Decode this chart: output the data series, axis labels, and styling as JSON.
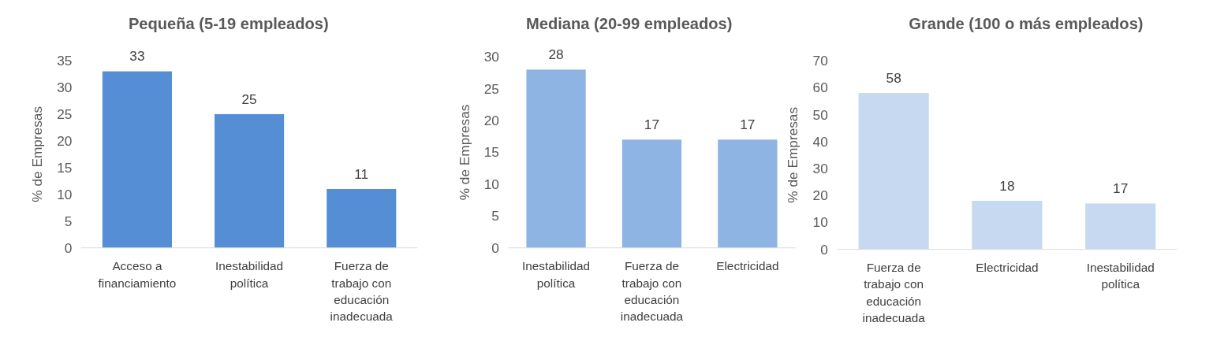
{
  "chart_data": [
    {
      "type": "bar",
      "title": "Pequeña (5-19 empleados)",
      "ylabel": "% de Empresas",
      "categories": [
        "Acceso a financiamiento",
        "Inestabilidad política",
        "Fuerza de trabajo con educación inadecuada"
      ],
      "values": [
        33,
        25,
        11
      ],
      "color": "#558ed5",
      "ylim": [
        0,
        35
      ],
      "yticks": [
        0,
        5,
        10,
        15,
        20,
        25,
        30,
        35
      ],
      "data_labels": true
    },
    {
      "type": "bar",
      "title": "Mediana (20-99 empleados)",
      "ylabel": "% de Empresas",
      "categories": [
        "Inestabilidad política",
        "Fuerza de trabajo con educación inadecuada",
        "Electricidad"
      ],
      "values": [
        28,
        17,
        17
      ],
      "color": "#8eb4e3",
      "ylim": [
        0,
        30
      ],
      "yticks": [
        0,
        5,
        10,
        15,
        20,
        25,
        30
      ],
      "data_labels": true
    },
    {
      "type": "bar",
      "title": "Grande (100 o más empleados)",
      "ylabel": "% de Empresas",
      "categories": [
        "Fuerza de trabajo con educación inadecuada",
        "Electricidad",
        "Inestabilidad política"
      ],
      "values": [
        58,
        18,
        17
      ],
      "color": "#c6d9f1",
      "ylim": [
        0,
        70
      ],
      "yticks": [
        0,
        10,
        20,
        30,
        40,
        50,
        60,
        70
      ],
      "data_labels": true
    }
  ]
}
